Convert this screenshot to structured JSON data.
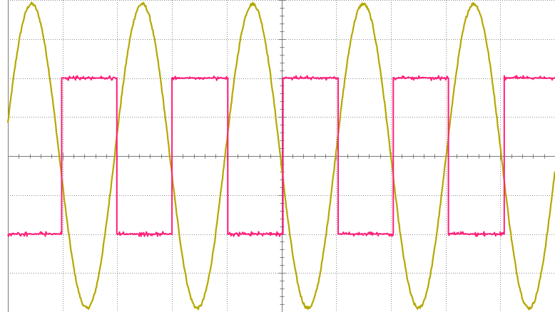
{
  "display": {
    "background_color": "#ffffff",
    "grid_color": "#8c8c8c",
    "axis_color": "#7a7a7a",
    "horizontal_divisions": 10,
    "vertical_divisions": 8,
    "minor_ticks_per_division": 5
  },
  "chart_data": {
    "type": "line",
    "title": "",
    "xlabel": "",
    "ylabel": "",
    "grid": true,
    "xlim": [
      0,
      10
    ],
    "ylim": [
      -4,
      4
    ],
    "series": [
      {
        "color": "#b5a800",
        "shape": "sine",
        "amplitude_div": 3.9,
        "period_div": 2.02,
        "phase_offset_div": -0.07,
        "noise_div": 0.04
      },
      {
        "color": "#ff1f7a",
        "shape": "square",
        "high_div": 2.0,
        "low_div": -2.0,
        "period_div": 2.02,
        "first_rise_div": 0.98,
        "noise_div": 0.06
      }
    ]
  }
}
